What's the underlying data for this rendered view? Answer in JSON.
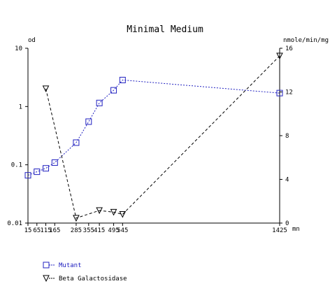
{
  "chart_data": {
    "type": "line",
    "title": "Minimal Medium",
    "ylabel": "od",
    "y2label": "nmole/min/mg",
    "xlabel": "mn",
    "ylog": true,
    "legend": "bottom",
    "xlim": [
      15,
      1425
    ],
    "xticks": [
      15,
      65,
      115,
      165,
      285,
      355,
      415,
      495,
      545,
      1425
    ],
    "ylim": [
      0.01,
      10
    ],
    "yticks": [
      0.01,
      0.1,
      1,
      10
    ],
    "y2lim": [
      0,
      16
    ],
    "y2ticks": [
      0,
      4,
      8,
      12,
      16
    ],
    "series": [
      {
        "name": "Mutant",
        "color": "#2020c0",
        "marker": "square",
        "dash": "2,2",
        "x": [
          15,
          65,
          115,
          165,
          285,
          355,
          415,
          495,
          545,
          1425
        ],
        "values": [
          0.066,
          0.076,
          0.087,
          0.109,
          0.24,
          0.55,
          1.15,
          1.9,
          2.85,
          1.7
        ]
      },
      {
        "name": "Beta Galactosidase",
        "color": "#000000",
        "marker": "triangle-down",
        "dash": "4,3",
        "axis": "y2",
        "x": [
          115,
          285,
          415,
          495,
          545,
          1425
        ],
        "values": [
          12.3,
          0.45,
          1.15,
          1.0,
          0.8,
          15.3
        ]
      }
    ]
  }
}
